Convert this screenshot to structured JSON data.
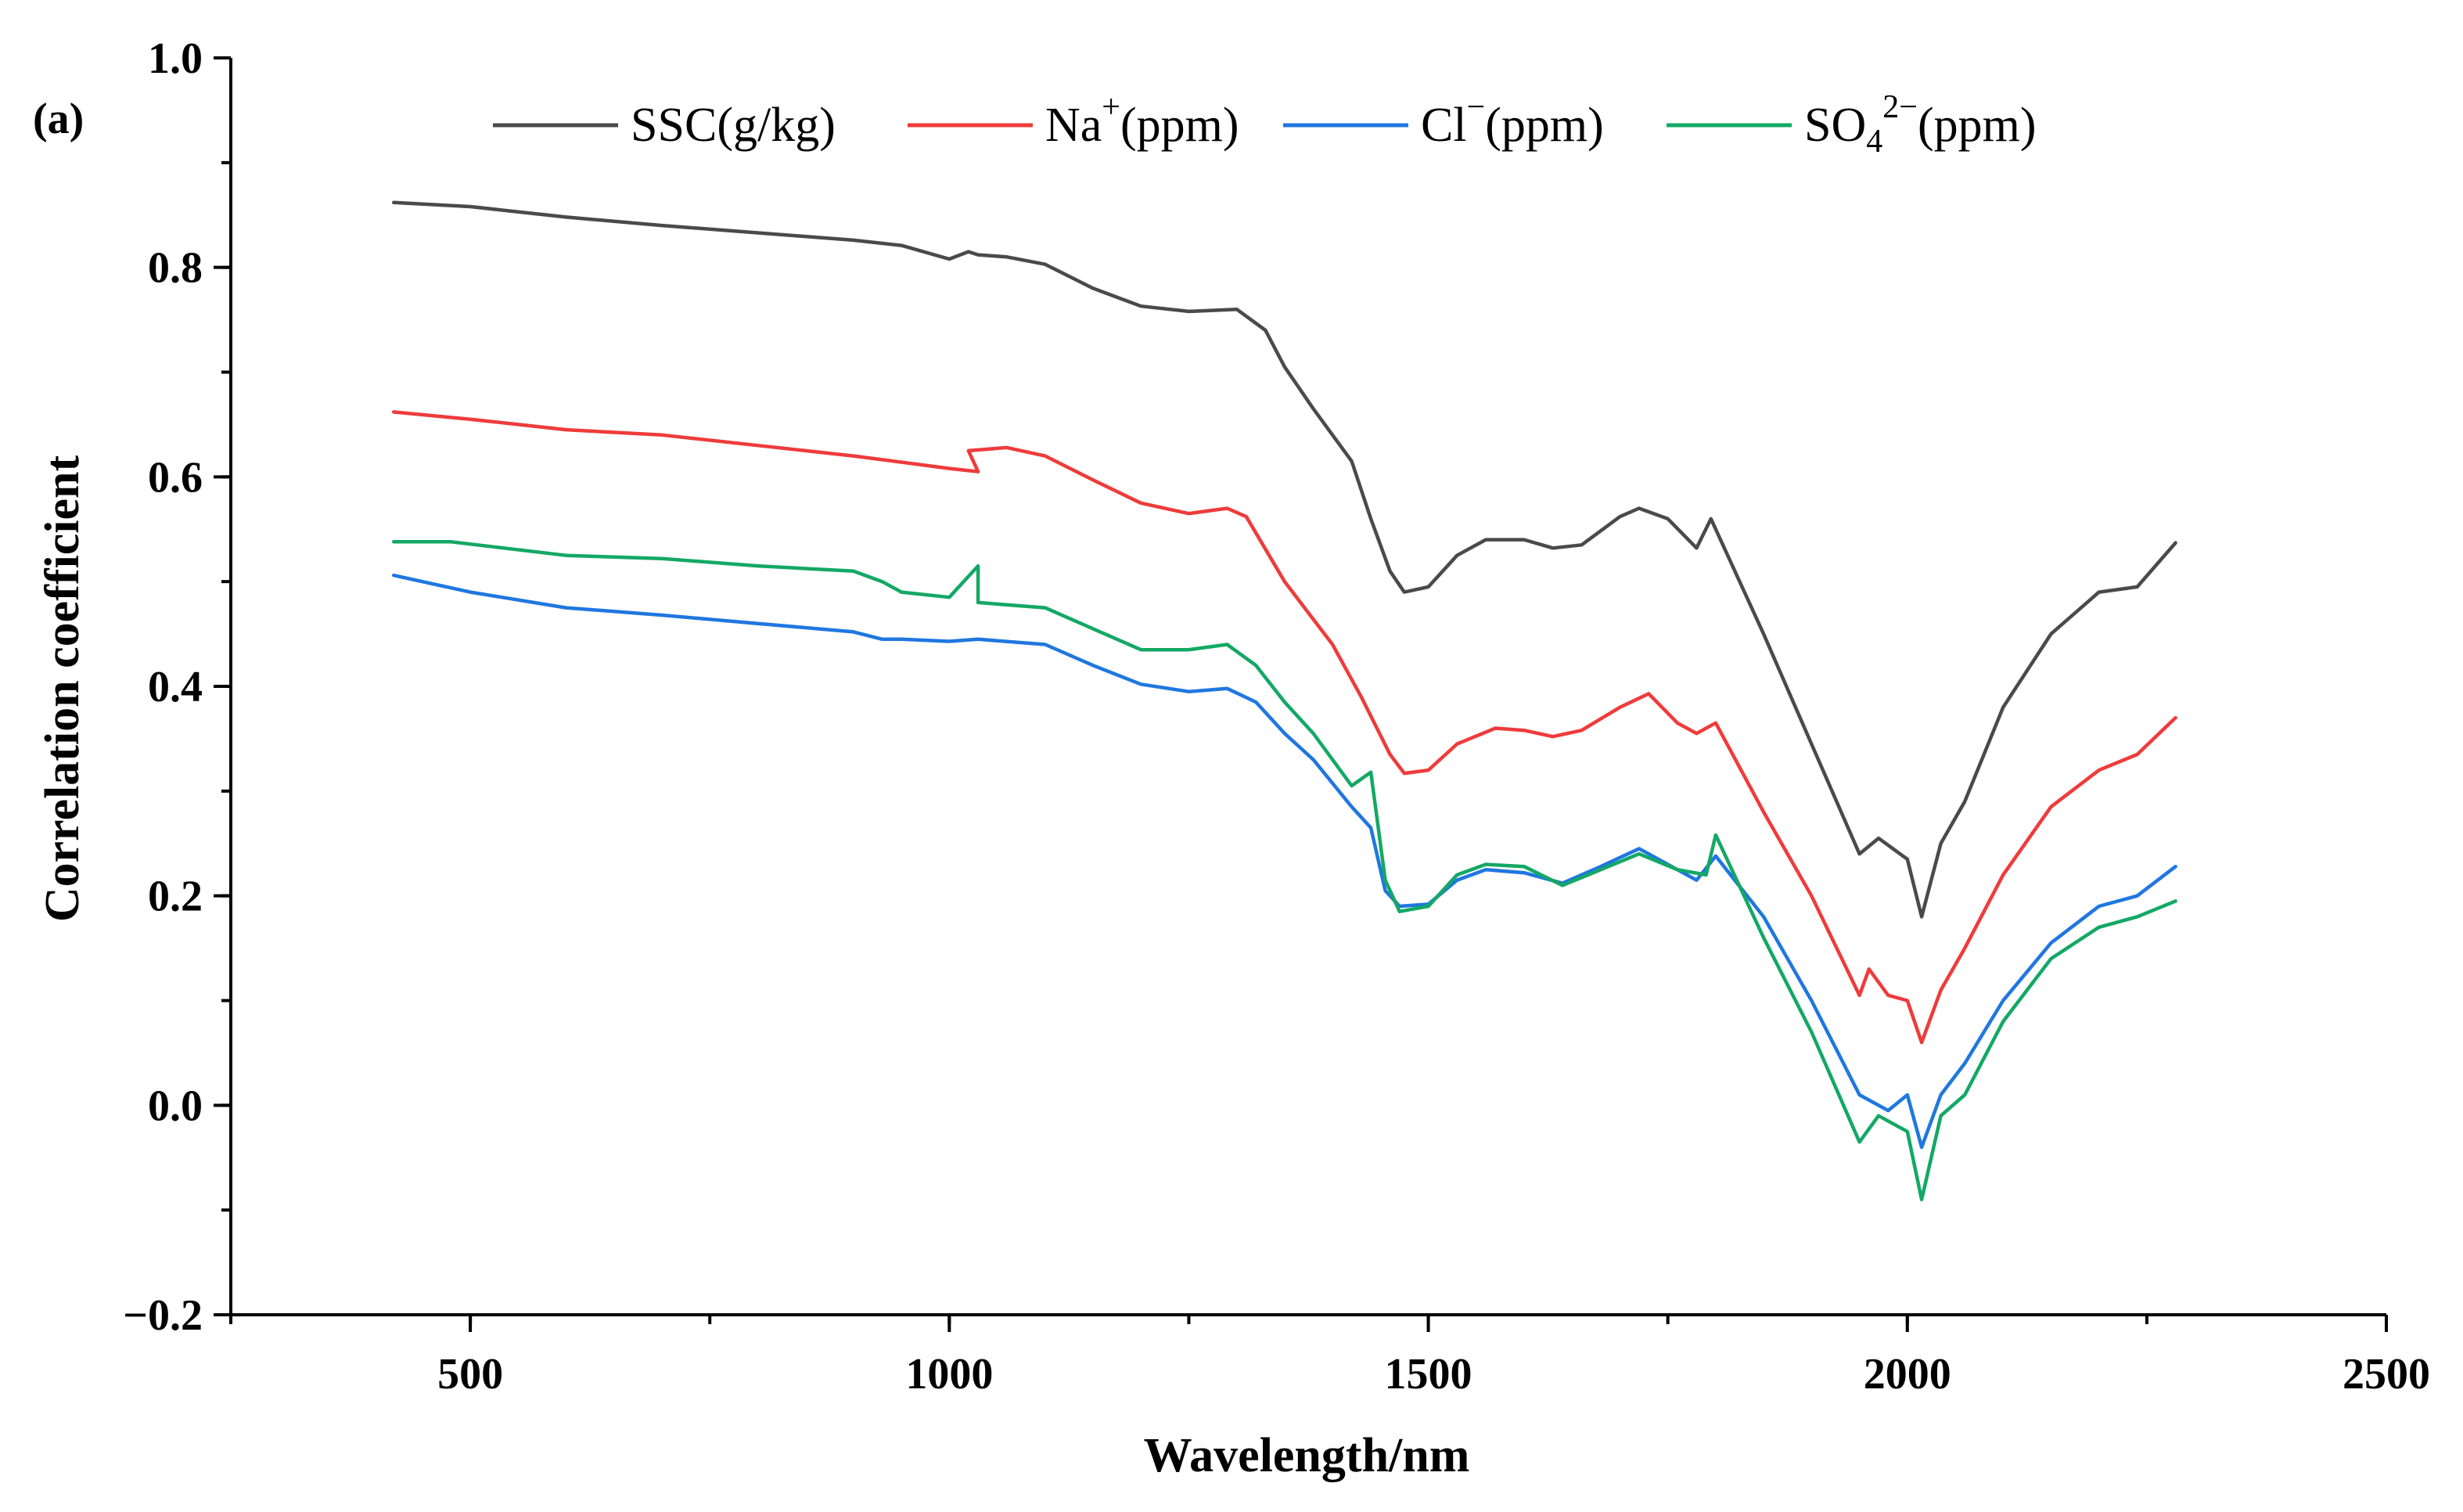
{
  "chart_data": {
    "type": "line",
    "panel_label": "(a)",
    "xlabel": "Wavelength/nm",
    "ylabel": "Correlation coefficient",
    "xlim": [
      250,
      2500
    ],
    "ylim": [
      -0.2,
      1.0
    ],
    "x_major_ticks": [
      500,
      1000,
      1500,
      2000,
      2500
    ],
    "x_tick_labels": [
      "500",
      "1000",
      "1500",
      "2000",
      "2500"
    ],
    "y_major_ticks": [
      -0.2,
      0.0,
      0.2,
      0.4,
      0.6,
      0.8,
      1.0
    ],
    "y_tick_labels": [
      "−0.2",
      "0.0",
      "0.2",
      "0.4",
      "0.6",
      "0.8",
      "1.0"
    ],
    "legend_position": "top",
    "series": [
      {
        "name": "SSC(g/kg)",
        "legend_base": "SSC(g/kg)",
        "color": "#4a4a4a",
        "points": [
          [
            420,
            0.862
          ],
          [
            500,
            0.858
          ],
          [
            600,
            0.848
          ],
          [
            700,
            0.84
          ],
          [
            800,
            0.833
          ],
          [
            900,
            0.826
          ],
          [
            950,
            0.821
          ],
          [
            1000,
            0.808
          ],
          [
            1020,
            0.815
          ],
          [
            1030,
            0.812
          ],
          [
            1060,
            0.81
          ],
          [
            1100,
            0.803
          ],
          [
            1150,
            0.78
          ],
          [
            1200,
            0.763
          ],
          [
            1250,
            0.758
          ],
          [
            1300,
            0.76
          ],
          [
            1330,
            0.74
          ],
          [
            1350,
            0.705
          ],
          [
            1380,
            0.665
          ],
          [
            1420,
            0.615
          ],
          [
            1440,
            0.56
          ],
          [
            1460,
            0.51
          ],
          [
            1475,
            0.49
          ],
          [
            1500,
            0.495
          ],
          [
            1530,
            0.525
          ],
          [
            1560,
            0.54
          ],
          [
            1600,
            0.54
          ],
          [
            1630,
            0.532
          ],
          [
            1660,
            0.535
          ],
          [
            1700,
            0.562
          ],
          [
            1720,
            0.57
          ],
          [
            1750,
            0.56
          ],
          [
            1780,
            0.532
          ],
          [
            1795,
            0.56
          ],
          [
            1850,
            0.45
          ],
          [
            1900,
            0.345
          ],
          [
            1950,
            0.24
          ],
          [
            1970,
            0.255
          ],
          [
            2000,
            0.235
          ],
          [
            2015,
            0.18
          ],
          [
            2035,
            0.25
          ],
          [
            2060,
            0.29
          ],
          [
            2100,
            0.38
          ],
          [
            2150,
            0.45
          ],
          [
            2200,
            0.49
          ],
          [
            2240,
            0.495
          ],
          [
            2280,
            0.537
          ]
        ]
      },
      {
        "name": "Na⁺(ppm)",
        "legend_base": "Na",
        "legend_sup": "+",
        "legend_sub": "",
        "legend_suffix": "(ppm)",
        "color": "#ef3b3b",
        "points": [
          [
            420,
            0.662
          ],
          [
            500,
            0.655
          ],
          [
            600,
            0.645
          ],
          [
            700,
            0.64
          ],
          [
            800,
            0.63
          ],
          [
            900,
            0.62
          ],
          [
            1000,
            0.608
          ],
          [
            1030,
            0.605
          ],
          [
            1020,
            0.625
          ],
          [
            1060,
            0.628
          ],
          [
            1100,
            0.62
          ],
          [
            1150,
            0.597
          ],
          [
            1200,
            0.575
          ],
          [
            1250,
            0.565
          ],
          [
            1290,
            0.57
          ],
          [
            1310,
            0.562
          ],
          [
            1350,
            0.5
          ],
          [
            1400,
            0.44
          ],
          [
            1430,
            0.39
          ],
          [
            1460,
            0.335
          ],
          [
            1475,
            0.317
          ],
          [
            1500,
            0.32
          ],
          [
            1530,
            0.345
          ],
          [
            1570,
            0.36
          ],
          [
            1600,
            0.358
          ],
          [
            1630,
            0.352
          ],
          [
            1660,
            0.358
          ],
          [
            1700,
            0.38
          ],
          [
            1730,
            0.393
          ],
          [
            1760,
            0.365
          ],
          [
            1780,
            0.355
          ],
          [
            1800,
            0.365
          ],
          [
            1850,
            0.28
          ],
          [
            1900,
            0.2
          ],
          [
            1950,
            0.105
          ],
          [
            1960,
            0.13
          ],
          [
            1980,
            0.105
          ],
          [
            2000,
            0.1
          ],
          [
            2015,
            0.06
          ],
          [
            2035,
            0.11
          ],
          [
            2060,
            0.15
          ],
          [
            2100,
            0.22
          ],
          [
            2150,
            0.285
          ],
          [
            2200,
            0.32
          ],
          [
            2240,
            0.335
          ],
          [
            2280,
            0.37
          ]
        ]
      },
      {
        "name": "Cl⁻(ppm)",
        "legend_base": "Cl",
        "legend_sup": "−",
        "legend_sub": "",
        "legend_suffix": "(ppm)",
        "color": "#1f77e0",
        "points": [
          [
            420,
            0.506
          ],
          [
            500,
            0.49
          ],
          [
            600,
            0.475
          ],
          [
            700,
            0.468
          ],
          [
            800,
            0.46
          ],
          [
            900,
            0.452
          ],
          [
            930,
            0.445
          ],
          [
            950,
            0.445
          ],
          [
            1000,
            0.443
          ],
          [
            1030,
            0.445
          ],
          [
            1100,
            0.44
          ],
          [
            1150,
            0.42
          ],
          [
            1200,
            0.402
          ],
          [
            1250,
            0.395
          ],
          [
            1290,
            0.398
          ],
          [
            1320,
            0.385
          ],
          [
            1350,
            0.355
          ],
          [
            1380,
            0.33
          ],
          [
            1420,
            0.285
          ],
          [
            1440,
            0.265
          ],
          [
            1455,
            0.205
          ],
          [
            1470,
            0.19
          ],
          [
            1500,
            0.192
          ],
          [
            1530,
            0.215
          ],
          [
            1560,
            0.225
          ],
          [
            1600,
            0.222
          ],
          [
            1640,
            0.212
          ],
          [
            1680,
            0.228
          ],
          [
            1720,
            0.245
          ],
          [
            1740,
            0.235
          ],
          [
            1780,
            0.215
          ],
          [
            1800,
            0.238
          ],
          [
            1850,
            0.18
          ],
          [
            1900,
            0.1
          ],
          [
            1950,
            0.01
          ],
          [
            1980,
            -0.005
          ],
          [
            2000,
            0.01
          ],
          [
            2015,
            -0.04
          ],
          [
            2035,
            0.01
          ],
          [
            2060,
            0.04
          ],
          [
            2100,
            0.1
          ],
          [
            2150,
            0.155
          ],
          [
            2200,
            0.19
          ],
          [
            2240,
            0.2
          ],
          [
            2280,
            0.228
          ]
        ]
      },
      {
        "name": "SO₄²⁻(ppm)",
        "legend_base": "SO",
        "legend_sup": "2−",
        "legend_sub": "4",
        "legend_suffix": "(ppm)",
        "color": "#13a865",
        "points": [
          [
            420,
            0.538
          ],
          [
            480,
            0.538
          ],
          [
            600,
            0.525
          ],
          [
            700,
            0.522
          ],
          [
            800,
            0.515
          ],
          [
            900,
            0.51
          ],
          [
            930,
            0.5
          ],
          [
            950,
            0.49
          ],
          [
            1000,
            0.485
          ],
          [
            1030,
            0.515
          ],
          [
            1030,
            0.48
          ],
          [
            1100,
            0.475
          ],
          [
            1150,
            0.455
          ],
          [
            1200,
            0.435
          ],
          [
            1250,
            0.435
          ],
          [
            1290,
            0.44
          ],
          [
            1320,
            0.42
          ],
          [
            1350,
            0.385
          ],
          [
            1380,
            0.355
          ],
          [
            1420,
            0.305
          ],
          [
            1440,
            0.318
          ],
          [
            1455,
            0.215
          ],
          [
            1470,
            0.185
          ],
          [
            1500,
            0.19
          ],
          [
            1530,
            0.22
          ],
          [
            1560,
            0.23
          ],
          [
            1600,
            0.228
          ],
          [
            1640,
            0.21
          ],
          [
            1680,
            0.225
          ],
          [
            1720,
            0.24
          ],
          [
            1760,
            0.225
          ],
          [
            1790,
            0.22
          ],
          [
            1800,
            0.258
          ],
          [
            1850,
            0.16
          ],
          [
            1900,
            0.07
          ],
          [
            1950,
            -0.035
          ],
          [
            1970,
            -0.01
          ],
          [
            2000,
            -0.025
          ],
          [
            2015,
            -0.09
          ],
          [
            2035,
            -0.01
          ],
          [
            2060,
            0.01
          ],
          [
            2100,
            0.08
          ],
          [
            2150,
            0.14
          ],
          [
            2200,
            0.17
          ],
          [
            2240,
            0.18
          ],
          [
            2280,
            0.195
          ]
        ]
      }
    ]
  }
}
